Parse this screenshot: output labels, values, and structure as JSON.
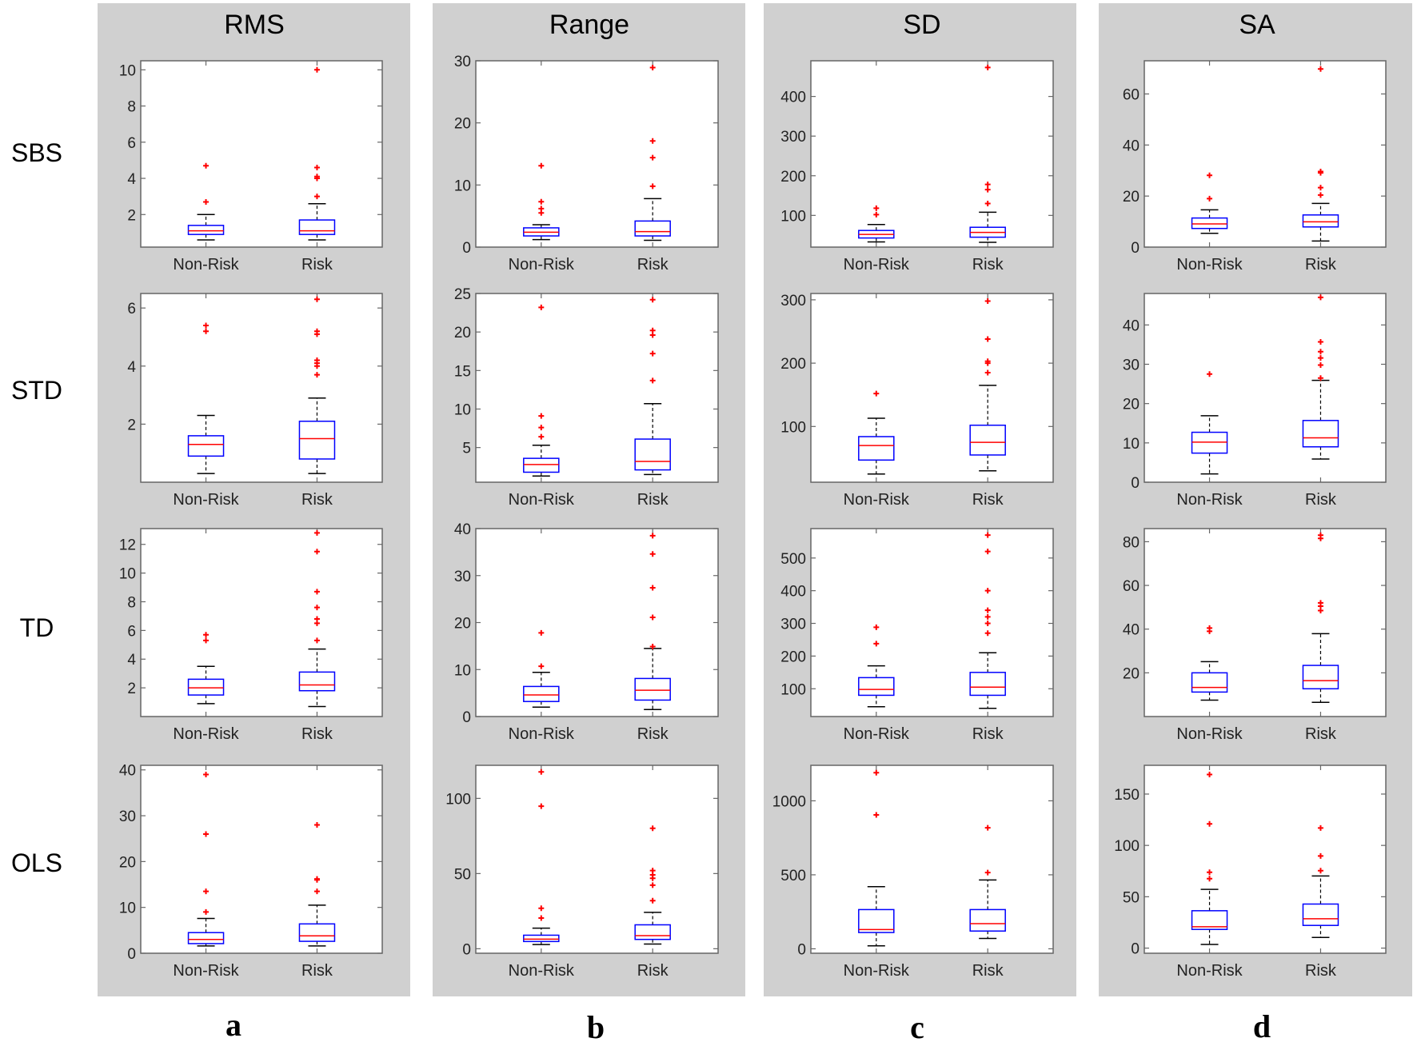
{
  "columns": [
    {
      "title": "RMS",
      "letter": "a"
    },
    {
      "title": "Range",
      "letter": "b"
    },
    {
      "title": "SD",
      "letter": "c"
    },
    {
      "title": "SA",
      "letter": "d"
    }
  ],
  "rows": [
    "SBS",
    "STD",
    "TD",
    "OLS"
  ],
  "colors": {
    "panel_bg": "#d0d0d0",
    "box": "#0000ff",
    "median": "#ff0000",
    "outlier": "#ff0000",
    "whisker": "#000000"
  },
  "chart_data": [
    {
      "type": "box",
      "row": "SBS",
      "column": "RMS",
      "categories": [
        "Non-Risk",
        "Risk"
      ],
      "ylim": [
        0.2,
        10.5
      ],
      "yticks": [
        2,
        4,
        6,
        8,
        10
      ],
      "series": [
        {
          "q1": 0.9,
          "median": 1.1,
          "q3": 1.4,
          "whisker_low": 0.6,
          "whisker_high": 2.0,
          "outliers": [
            2.7,
            4.7
          ]
        },
        {
          "q1": 0.9,
          "median": 1.1,
          "q3": 1.7,
          "whisker_low": 0.6,
          "whisker_high": 2.6,
          "outliers": [
            3.0,
            4.0,
            4.1,
            4.6,
            10.0
          ]
        }
      ]
    },
    {
      "type": "box",
      "row": "SBS",
      "column": "Range",
      "categories": [
        "Non-Risk",
        "Risk"
      ],
      "ylim": [
        0,
        30
      ],
      "yticks": [
        0,
        10,
        20,
        30
      ],
      "series": [
        {
          "q1": 1.8,
          "median": 2.4,
          "q3": 3.1,
          "whisker_low": 1.2,
          "whisker_high": 3.6,
          "outliers": [
            5.5,
            6.2,
            7.3,
            13.1
          ]
        },
        {
          "q1": 1.8,
          "median": 2.5,
          "q3": 4.2,
          "whisker_low": 1.1,
          "whisker_high": 7.8,
          "outliers": [
            9.8,
            14.4,
            17.1,
            28.9
          ]
        }
      ]
    },
    {
      "type": "box",
      "row": "SBS",
      "column": "SD",
      "categories": [
        "Non-Risk",
        "Risk"
      ],
      "ylim": [
        20,
        490
      ],
      "yticks": [
        100,
        200,
        300,
        400
      ],
      "series": [
        {
          "q1": 43,
          "median": 52,
          "q3": 62,
          "whisker_low": 33,
          "whisker_high": 77,
          "outliers": [
            102,
            118
          ]
        },
        {
          "q1": 45,
          "median": 57,
          "q3": 70,
          "whisker_low": 32,
          "whisker_high": 108,
          "outliers": [
            130,
            165,
            178,
            473
          ]
        }
      ]
    },
    {
      "type": "box",
      "row": "SBS",
      "column": "SA",
      "categories": [
        "Non-Risk",
        "Risk"
      ],
      "ylim": [
        0,
        73
      ],
      "yticks": [
        0,
        20,
        40,
        60
      ],
      "series": [
        {
          "q1": 7.3,
          "median": 9.1,
          "q3": 11.4,
          "whisker_low": 5.4,
          "whisker_high": 14.6,
          "outliers": [
            19.0,
            28.1
          ]
        },
        {
          "q1": 7.9,
          "median": 9.9,
          "q3": 12.6,
          "whisker_low": 2.4,
          "whisker_high": 17.1,
          "outliers": [
            20.4,
            23.3,
            29.1,
            29.6,
            69.8
          ]
        }
      ]
    },
    {
      "type": "box",
      "row": "STD",
      "column": "RMS",
      "categories": [
        "Non-Risk",
        "Risk"
      ],
      "ylim": [
        0.0,
        6.5
      ],
      "yticks": [
        2,
        4,
        6
      ],
      "series": [
        {
          "q1": 0.9,
          "median": 1.3,
          "q3": 1.6,
          "whisker_low": 0.3,
          "whisker_high": 2.3,
          "outliers": [
            5.2,
            5.4
          ]
        },
        {
          "q1": 0.8,
          "median": 1.5,
          "q3": 2.1,
          "whisker_low": 0.3,
          "whisker_high": 2.9,
          "outliers": [
            3.7,
            4.0,
            4.1,
            4.2,
            5.1,
            5.2,
            6.3
          ]
        }
      ]
    },
    {
      "type": "box",
      "row": "STD",
      "column": "Range",
      "categories": [
        "Non-Risk",
        "Risk"
      ],
      "ylim": [
        0.5,
        25
      ],
      "yticks": [
        5,
        10,
        15,
        20,
        25
      ],
      "series": [
        {
          "q1": 1.8,
          "median": 2.8,
          "q3": 3.6,
          "whisker_low": 1.3,
          "whisker_high": 5.3,
          "outliers": [
            6.4,
            7.6,
            9.1,
            23.2
          ]
        },
        {
          "q1": 2.1,
          "median": 3.2,
          "q3": 6.1,
          "whisker_low": 1.5,
          "whisker_high": 10.7,
          "outliers": [
            13.7,
            17.2,
            19.6,
            20.2,
            24.2
          ]
        }
      ]
    },
    {
      "type": "box",
      "row": "STD",
      "column": "SD",
      "categories": [
        "Non-Risk",
        "Risk"
      ],
      "ylim": [
        12,
        310
      ],
      "yticks": [
        100,
        200,
        300
      ],
      "series": [
        {
          "q1": 47,
          "median": 70,
          "q3": 84,
          "whisker_low": 25,
          "whisker_high": 113,
          "outliers": [
            152
          ]
        },
        {
          "q1": 55,
          "median": 75,
          "q3": 102,
          "whisker_low": 30,
          "whisker_high": 165,
          "outliers": [
            185,
            200,
            203,
            238,
            298
          ]
        }
      ]
    },
    {
      "type": "box",
      "row": "STD",
      "column": "SA",
      "categories": [
        "Non-Risk",
        "Risk"
      ],
      "ylim": [
        0,
        48
      ],
      "yticks": [
        0,
        10,
        20,
        30,
        40
      ],
      "series": [
        {
          "q1": 7.4,
          "median": 10.2,
          "q3": 12.7,
          "whisker_low": 2.1,
          "whisker_high": 16.9,
          "outliers": [
            27.5
          ]
        },
        {
          "q1": 9.0,
          "median": 11.3,
          "q3": 15.7,
          "whisker_low": 5.9,
          "whisker_high": 25.9,
          "outliers": [
            26.5,
            29.8,
            31.6,
            33.2,
            35.7,
            47.0
          ]
        }
      ]
    },
    {
      "type": "box",
      "row": "TD",
      "column": "RMS",
      "categories": [
        "Non-Risk",
        "Risk"
      ],
      "ylim": [
        0.0,
        13.1
      ],
      "yticks": [
        2,
        4,
        6,
        8,
        10,
        12
      ],
      "series": [
        {
          "q1": 1.5,
          "median": 2.0,
          "q3": 2.6,
          "whisker_low": 0.9,
          "whisker_high": 3.5,
          "outliers": [
            5.3,
            5.7
          ]
        },
        {
          "q1": 1.8,
          "median": 2.2,
          "q3": 3.1,
          "whisker_low": 0.7,
          "whisker_high": 4.7,
          "outliers": [
            5.3,
            6.5,
            6.8,
            7.6,
            8.7,
            11.5,
            12.8
          ]
        }
      ]
    },
    {
      "type": "box",
      "row": "TD",
      "column": "Range",
      "categories": [
        "Non-Risk",
        "Risk"
      ],
      "ylim": [
        0,
        40
      ],
      "yticks": [
        0,
        10,
        20,
        30,
        40
      ],
      "series": [
        {
          "q1": 3.2,
          "median": 4.6,
          "q3": 6.4,
          "whisker_low": 2.0,
          "whisker_high": 9.4,
          "outliers": [
            10.7,
            17.8
          ]
        },
        {
          "q1": 3.5,
          "median": 5.6,
          "q3": 8.1,
          "whisker_low": 1.5,
          "whisker_high": 14.5,
          "outliers": [
            14.9,
            21.1,
            27.4,
            34.6,
            38.5
          ]
        }
      ]
    },
    {
      "type": "box",
      "row": "TD",
      "column": "SD",
      "categories": [
        "Non-Risk",
        "Risk"
      ],
      "ylim": [
        15,
        590
      ],
      "yticks": [
        100,
        200,
        300,
        400,
        500
      ],
      "series": [
        {
          "q1": 80,
          "median": 98,
          "q3": 134,
          "whisker_low": 45,
          "whisker_high": 170,
          "outliers": [
            238,
            288
          ]
        },
        {
          "q1": 80,
          "median": 105,
          "q3": 150,
          "whisker_low": 40,
          "whisker_high": 210,
          "outliers": [
            270,
            300,
            320,
            340,
            400,
            520,
            570
          ]
        }
      ]
    },
    {
      "type": "box",
      "row": "TD",
      "column": "SA",
      "categories": [
        "Non-Risk",
        "Risk"
      ],
      "ylim": [
        0,
        86
      ],
      "yticks": [
        20,
        40,
        60,
        80
      ],
      "series": [
        {
          "q1": 11.2,
          "median": 13.3,
          "q3": 20.0,
          "whisker_low": 7.5,
          "whisker_high": 25.1,
          "outliers": [
            39.0,
            40.5
          ]
        },
        {
          "q1": 12.7,
          "median": 16.4,
          "q3": 23.4,
          "whisker_low": 6.5,
          "whisker_high": 37.9,
          "outliers": [
            48.5,
            50.5,
            52.0,
            81.5,
            83.0
          ]
        }
      ]
    },
    {
      "type": "box",
      "row": "OLS",
      "column": "RMS",
      "categories": [
        "Non-Risk",
        "Risk"
      ],
      "ylim": [
        0,
        41
      ],
      "yticks": [
        0,
        10,
        20,
        30,
        40
      ],
      "series": [
        {
          "q1": 2.1,
          "median": 3.0,
          "q3": 4.5,
          "whisker_low": 1.6,
          "whisker_high": 7.6,
          "outliers": [
            9.0,
            13.5,
            26.0,
            39.0
          ]
        },
        {
          "q1": 2.6,
          "median": 3.8,
          "q3": 6.4,
          "whisker_low": 1.6,
          "whisker_high": 10.5,
          "outliers": [
            13.5,
            16.0,
            16.2,
            28.0
          ]
        }
      ]
    },
    {
      "type": "box",
      "row": "OLS",
      "column": "Range",
      "categories": [
        "Non-Risk",
        "Risk"
      ],
      "ylim": [
        -3,
        122
      ],
      "yticks": [
        0,
        50,
        100
      ],
      "series": [
        {
          "q1": 4.8,
          "median": 6.4,
          "q3": 9.0,
          "whisker_low": 2.8,
          "whisker_high": 13.7,
          "outliers": [
            20.4,
            26.9,
            94.8,
            117.6
          ]
        },
        {
          "q1": 6.2,
          "median": 8.7,
          "q3": 15.9,
          "whisker_low": 3.1,
          "whisker_high": 24.2,
          "outliers": [
            32.0,
            42.3,
            46.9,
            49.1,
            52.0,
            80.1
          ]
        }
      ]
    },
    {
      "type": "box",
      "row": "OLS",
      "column": "SD",
      "categories": [
        "Non-Risk",
        "Risk"
      ],
      "ylim": [
        -30,
        1240
      ],
      "yticks": [
        0,
        500,
        1000
      ],
      "series": [
        {
          "q1": 110,
          "median": 130,
          "q3": 265,
          "whisker_low": 20,
          "whisker_high": 420,
          "outliers": [
            905,
            1190
          ]
        },
        {
          "q1": 120,
          "median": 170,
          "q3": 265,
          "whisker_low": 70,
          "whisker_high": 465,
          "outliers": [
            515,
            818
          ]
        }
      ]
    },
    {
      "type": "box",
      "row": "OLS",
      "column": "SA",
      "categories": [
        "Non-Risk",
        "Risk"
      ],
      "ylim": [
        -5,
        178
      ],
      "yticks": [
        0,
        50,
        100,
        150
      ],
      "series": [
        {
          "q1": 18.2,
          "median": 20.8,
          "q3": 36.4,
          "whisker_low": 3.6,
          "whisker_high": 57.2,
          "outliers": [
            67.6,
            73.8,
            121.0,
            169.0
          ]
        },
        {
          "q1": 22.1,
          "median": 28.6,
          "q3": 42.9,
          "whisker_low": 10.4,
          "whisker_high": 70.2,
          "outliers": [
            75.4,
            89.7,
            117.0
          ]
        }
      ]
    }
  ]
}
